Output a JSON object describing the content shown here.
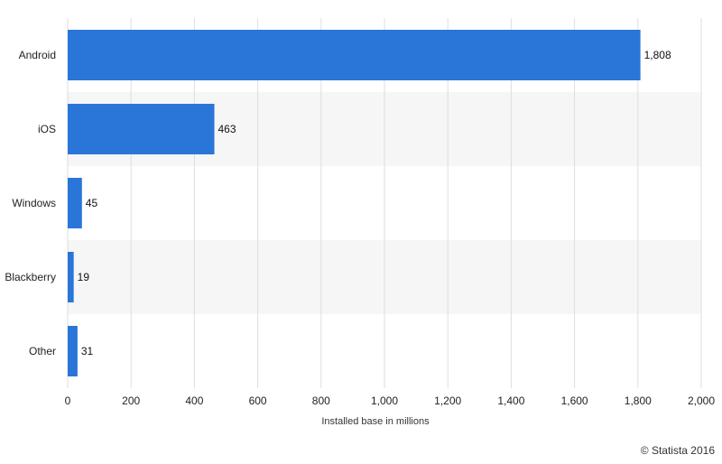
{
  "chart_data": {
    "type": "bar",
    "orientation": "horizontal",
    "categories": [
      "Android",
      "iOS",
      "Windows",
      "Blackberry",
      "Other"
    ],
    "values": [
      1808,
      463,
      45,
      19,
      31
    ],
    "value_labels": [
      "1,808",
      "463",
      "45",
      "19",
      "31"
    ],
    "xlabel": "Installed base in millions",
    "xlim": [
      0,
      2000
    ],
    "x_ticks": [
      0,
      200,
      400,
      600,
      800,
      1000,
      1200,
      1400,
      1600,
      1800,
      2000
    ],
    "x_tick_labels": [
      "0",
      "200",
      "400",
      "600",
      "800",
      "1,000",
      "1,200",
      "1,400",
      "1,600",
      "1,800",
      "2,000"
    ],
    "grid": "vertical",
    "alternating_row_bands": true,
    "bar_color": "#2a75d8",
    "band_color": "#f6f6f6",
    "grid_color": "#dedede"
  },
  "copyright": "© Statista 2016"
}
